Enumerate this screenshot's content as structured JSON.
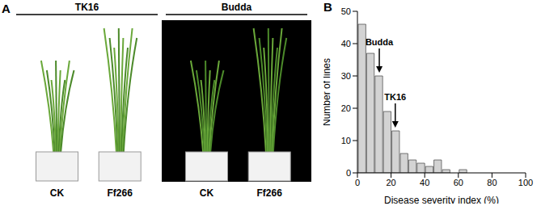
{
  "panel_a": {
    "label": "A",
    "groups": [
      {
        "name": "TK16",
        "treatments": [
          "CK",
          "Ff266"
        ]
      },
      {
        "name": "Budda",
        "treatments": [
          "CK",
          "Ff266"
        ]
      }
    ]
  },
  "panel_b": {
    "label": "B"
  },
  "chart_data": {
    "type": "histogram",
    "bins": [
      0,
      5,
      10,
      15,
      20,
      25,
      30,
      35,
      40,
      45,
      50,
      55,
      60,
      65
    ],
    "counts": [
      46,
      37,
      30,
      19,
      13,
      6,
      4,
      3,
      2,
      4,
      1,
      0,
      1
    ],
    "color": "#d3d3d3",
    "x_label": "Disease severity index (%)",
    "y_label": "Number of lines",
    "xlim": [
      0,
      100
    ],
    "xticks": [
      0,
      20,
      40,
      60,
      80,
      100
    ],
    "ylim": [
      0,
      50
    ],
    "yticks": [
      0,
      10,
      20,
      30,
      40,
      50
    ],
    "grid": false,
    "annotations": [
      {
        "text": "Budda",
        "x": 13,
        "y": 31
      },
      {
        "text": "TK16",
        "x": 22.5,
        "y": 14
      }
    ]
  }
}
